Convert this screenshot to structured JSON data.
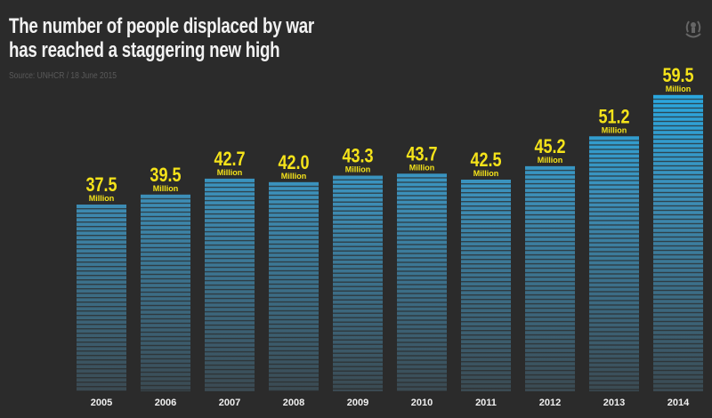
{
  "title_lines": [
    "The number of people displaced by war",
    "has reached a staggering new high"
  ],
  "source": "Source: UNHCR / 18 June 2015",
  "logo": "UNHCR",
  "chart_data": {
    "type": "bar",
    "categories": [
      "2005",
      "2006",
      "2007",
      "2008",
      "2009",
      "2010",
      "2011",
      "2012",
      "2013",
      "2014"
    ],
    "values": [
      37.5,
      39.5,
      42.7,
      42.0,
      43.3,
      43.7,
      42.5,
      45.2,
      51.2,
      59.5
    ],
    "value_labels": [
      "37.5",
      "39.5",
      "42.7",
      "42.0",
      "43.3",
      "43.7",
      "42.5",
      "45.2",
      "51.2",
      "59.5"
    ],
    "unit_label": "Million",
    "ylim": [
      0,
      60
    ],
    "grid": false,
    "colors": {
      "bar_top": "#2aa8e0",
      "bar_bottom": "#3b4a52",
      "label": "#f5e31a",
      "background": "#2b2b2b"
    }
  }
}
